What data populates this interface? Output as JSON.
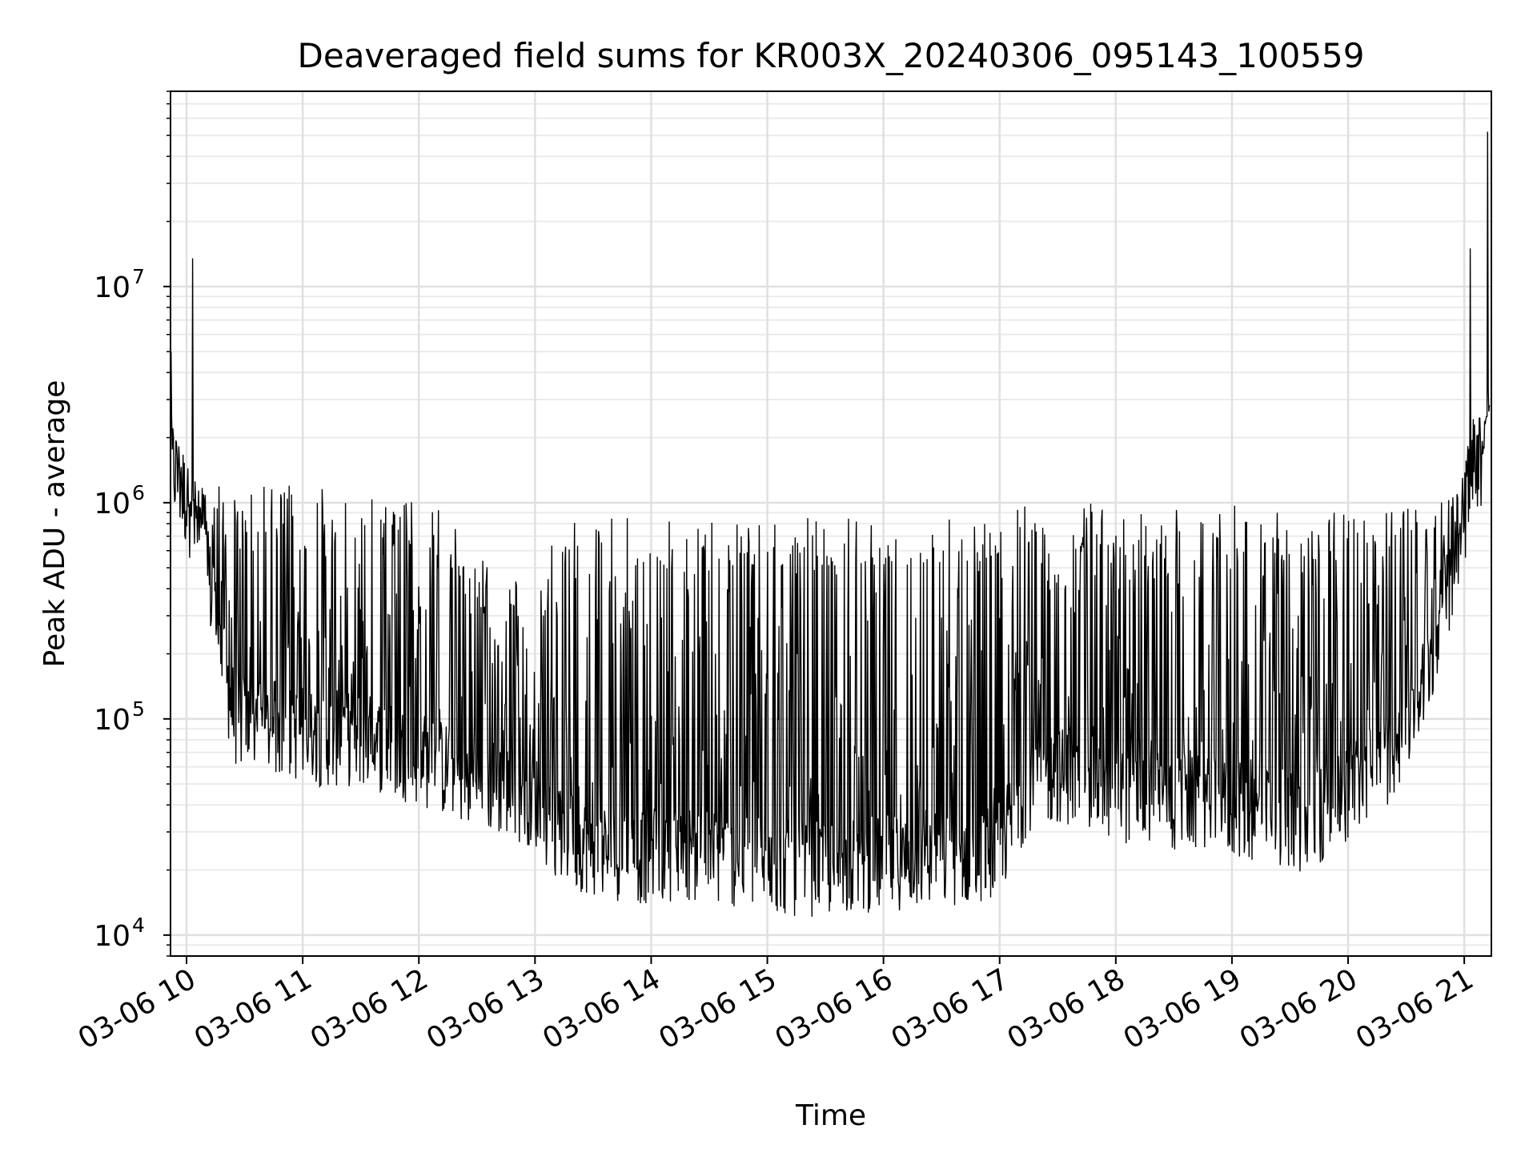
{
  "chart_data": {
    "type": "line",
    "title": "Deaveraged field sums for KR003X_20240306_095143_100559",
    "xlabel": "Time",
    "ylabel": "Peak ADU - average",
    "x_scale": "time",
    "y_scale": "log",
    "xlim": [
      "2024-03-06 09:51:43",
      "2024-03-06 21:14:00"
    ],
    "ylim": [
      8000,
      80000000
    ],
    "grid": true,
    "grid_minor": true,
    "line_color": "#000000",
    "x_ticks": [
      {
        "t": "2024-03-06 10:00",
        "label": "03-06 10"
      },
      {
        "t": "2024-03-06 11:00",
        "label": "03-06 11"
      },
      {
        "t": "2024-03-06 12:00",
        "label": "03-06 12"
      },
      {
        "t": "2024-03-06 13:00",
        "label": "03-06 13"
      },
      {
        "t": "2024-03-06 14:00",
        "label": "03-06 14"
      },
      {
        "t": "2024-03-06 15:00",
        "label": "03-06 15"
      },
      {
        "t": "2024-03-06 16:00",
        "label": "03-06 16"
      },
      {
        "t": "2024-03-06 17:00",
        "label": "03-06 17"
      },
      {
        "t": "2024-03-06 18:00",
        "label": "03-06 18"
      },
      {
        "t": "2024-03-06 19:00",
        "label": "03-06 19"
      },
      {
        "t": "2024-03-06 20:00",
        "label": "03-06 20"
      },
      {
        "t": "2024-03-06 21:00",
        "label": "03-06 21"
      }
    ],
    "y_ticks": [
      {
        "value": 10000,
        "base": "10",
        "exp": "4"
      },
      {
        "value": 100000,
        "base": "10",
        "exp": "5"
      },
      {
        "value": 1000000,
        "base": "10",
        "exp": "6"
      },
      {
        "value": 10000000,
        "base": "10",
        "exp": "7"
      }
    ],
    "series": [
      {
        "x": [
          "2024-03-06 09:52",
          "2024-03-06 09:55",
          "2024-03-06 09:58",
          "2024-03-06 10:02",
          "2024-03-06 10:06",
          "2024-03-06 10:10",
          "2024-03-06 10:15",
          "2024-03-06 10:20",
          "2024-03-06 10:25",
          "2024-03-06 10:30",
          "2024-03-06 10:35",
          "2024-03-06 10:40",
          "2024-03-06 10:45",
          "2024-03-06 10:50",
          "2024-03-06 10:55",
          "2024-03-06 11:00",
          "2024-03-06 11:10",
          "2024-03-06 11:20",
          "2024-03-06 11:30",
          "2024-03-06 11:40",
          "2024-03-06 11:50",
          "2024-03-06 12:00",
          "2024-03-06 12:10",
          "2024-03-06 12:20",
          "2024-03-06 12:30",
          "2024-03-06 12:40",
          "2024-03-06 12:50",
          "2024-03-06 13:00",
          "2024-03-06 13:10",
          "2024-03-06 13:20",
          "2024-03-06 13:30",
          "2024-03-06 13:40",
          "2024-03-06 13:50",
          "2024-03-06 14:00",
          "2024-03-06 14:15",
          "2024-03-06 14:30",
          "2024-03-06 14:45",
          "2024-03-06 15:00",
          "2024-03-06 15:15",
          "2024-03-06 15:30",
          "2024-03-06 15:45",
          "2024-03-06 16:00",
          "2024-03-06 16:15",
          "2024-03-06 16:30",
          "2024-03-06 16:45",
          "2024-03-06 17:00",
          "2024-03-06 17:15",
          "2024-03-06 17:30",
          "2024-03-06 17:45",
          "2024-03-06 18:00",
          "2024-03-06 18:15",
          "2024-03-06 18:30",
          "2024-03-06 18:45",
          "2024-03-06 19:00",
          "2024-03-06 19:15",
          "2024-03-06 19:30",
          "2024-03-06 19:45",
          "2024-03-06 20:00",
          "2024-03-06 20:10",
          "2024-03-06 20:20",
          "2024-03-06 20:30",
          "2024-03-06 20:40",
          "2024-03-06 20:50",
          "2024-03-06 21:00",
          "2024-03-06 21:05",
          "2024-03-06 21:10",
          "2024-03-06 21:13"
        ],
        "baseline": [
          1500000,
          1300000,
          1100000,
          900000,
          700000,
          500000,
          300000,
          150000,
          100000,
          95000,
          95000,
          90000,
          90000,
          85000,
          85000,
          85000,
          80000,
          80000,
          80000,
          75000,
          70000,
          65000,
          60000,
          55000,
          50000,
          48000,
          45000,
          42000,
          30000,
          27000,
          25000,
          24000,
          23000,
          23000,
          24000,
          23000,
          22000,
          21000,
          20000,
          20000,
          21000,
          21000,
          22000,
          22000,
          23000,
          25000,
          50000,
          55000,
          50000,
          45000,
          42000,
          40000,
          40000,
          38000,
          35000,
          33000,
          32000,
          45000,
          55000,
          65000,
          90000,
          150000,
          350000,
          800000,
          1500000,
          1600000,
          2500000
        ],
        "peaks": [
          2600000,
          2200000,
          1900000,
          1400000,
          1400000,
          1300000,
          1300000,
          1250000,
          1300000,
          1350000,
          1300000,
          1300000,
          1250000,
          1200000,
          1250000,
          1200000,
          1250000,
          1200000,
          1150000,
          1100000,
          1050000,
          1000000,
          950000,
          750000,
          600000,
          500000,
          450000,
          300000,
          800000,
          900000,
          900000,
          850000,
          850000,
          850000,
          800000,
          850000,
          850000,
          850000,
          850000,
          850000,
          850000,
          850000,
          850000,
          900000,
          900000,
          950000,
          1000000,
          1100000,
          1000000,
          1000000,
          950000,
          950000,
          950000,
          1000000,
          950000,
          950000,
          900000,
          900000,
          950000,
          1000000,
          1000000,
          1100000,
          1200000,
          1800000,
          2500000,
          3000000,
          4000000
        ],
        "spikes": [
          {
            "t": "2024-03-06 09:52",
            "value": 5000000
          },
          {
            "t": "2024-03-06 10:03",
            "value": 13500000
          },
          {
            "t": "2024-03-06 21:03",
            "value": 15000000
          },
          {
            "t": "2024-03-06 21:12",
            "value": 52000000
          }
        ],
        "stats": {
          "min": 12000,
          "max": 52000000
        }
      }
    ]
  }
}
